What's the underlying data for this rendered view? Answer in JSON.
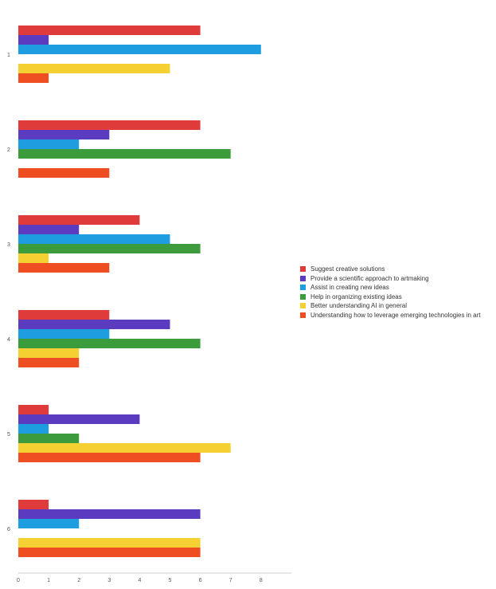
{
  "chart_data": {
    "type": "bar",
    "orientation": "horizontal",
    "categories": [
      "1",
      "2",
      "3",
      "4",
      "5",
      "6"
    ],
    "series": [
      {
        "name": "Suggest creative solutions",
        "color": "#e03b3b",
        "values": [
          6,
          6,
          4,
          3,
          1,
          1
        ]
      },
      {
        "name": "Provide a scientific approach to artmaking",
        "color": "#5b3bbf",
        "values": [
          1,
          3,
          2,
          5,
          4,
          6
        ]
      },
      {
        "name": "Assist in creating new ideas",
        "color": "#1e9ee0",
        "values": [
          8,
          2,
          5,
          3,
          1,
          2
        ]
      },
      {
        "name": "Help in organizing existing ideas",
        "color": "#3c9c3c",
        "values": [
          0,
          7,
          6,
          6,
          2,
          0
        ]
      },
      {
        "name": "Better understanding AI in general",
        "color": "#f5d033",
        "values": [
          5,
          0,
          1,
          2,
          7,
          6
        ]
      },
      {
        "name": "Understanding how to leverage emerging technologies in art",
        "color": "#ef4e23",
        "values": [
          1,
          3,
          3,
          2,
          6,
          6
        ]
      }
    ],
    "x_ticks": [
      "0",
      "1",
      "2",
      "3",
      "4",
      "5",
      "6",
      "7",
      "8"
    ],
    "xlim": [
      0,
      9
    ],
    "title": "",
    "xlabel": "",
    "ylabel": "",
    "grid": false,
    "legend_position": "right"
  }
}
